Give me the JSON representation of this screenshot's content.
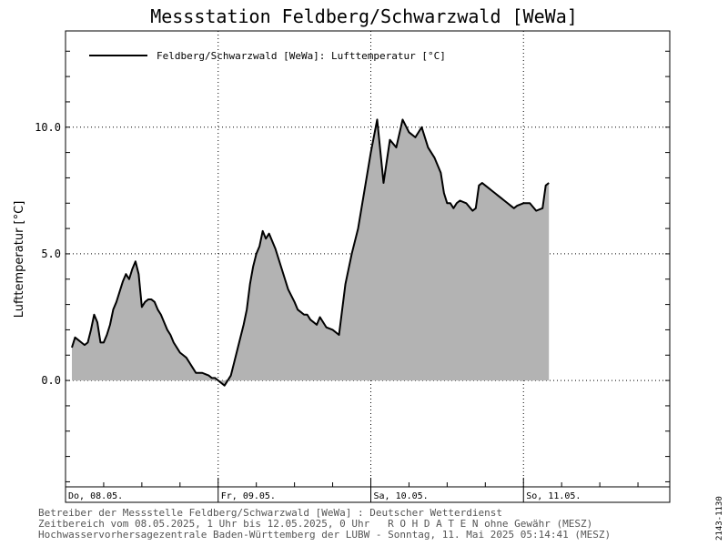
{
  "chart_data": {
    "type": "area",
    "title": "Messstation Feldberg/Schwarzwald [WeWa]",
    "ylabel": "Lufttemperatur [°C]",
    "xlabel": "",
    "ylim": [
      -4.2,
      13.8
    ],
    "xlim": [
      0,
      95
    ],
    "x_unit": "hours since 08.05.2025 00:00 (MESZ)",
    "yticks": [
      0.0,
      5.0,
      10.0
    ],
    "ytick_labels": [
      "0.0",
      "5.0",
      "10.0"
    ],
    "date_labels": [
      {
        "x": 0,
        "label": "Do, 08.05."
      },
      {
        "x": 24,
        "label": "Fr, 09.05."
      },
      {
        "x": 48,
        "label": "Sa, 10.05."
      },
      {
        "x": 72,
        "label": "So, 11.05."
      }
    ],
    "grid": true,
    "fill_color": "#b3b3b3",
    "line_color": "#000000",
    "legend": {
      "position": "top-left",
      "label": "Feldberg/Schwarzwald [WeWa]: Lufttemperatur  [°C]"
    },
    "series": [
      {
        "name": "Feldberg/Schwarzwald [WeWa]: Lufttemperatur  [°C]",
        "x": [
          1.0,
          1.5,
          2.0,
          2.5,
          3.0,
          3.5,
          4.0,
          4.5,
          5.0,
          5.5,
          6.0,
          6.5,
          7.0,
          7.5,
          8.0,
          8.5,
          9.0,
          9.5,
          10.0,
          10.5,
          11.0,
          11.5,
          12.0,
          12.5,
          13.0,
          13.5,
          14.0,
          14.5,
          15.0,
          15.5,
          16.0,
          16.5,
          17.0,
          17.5,
          18.0,
          18.5,
          19.0,
          19.5,
          20.0,
          20.5,
          21.0,
          21.5,
          22.0,
          22.5,
          23.0,
          23.5,
          24.0,
          25.0,
          26.0,
          27.0,
          28.0,
          28.5,
          29.0,
          29.5,
          30.0,
          30.5,
          31.0,
          31.5,
          32.0,
          33.0,
          34.0,
          35.0,
          36.0,
          36.5,
          37.0,
          37.5,
          38.0,
          38.5,
          39.0,
          39.5,
          40.0,
          41.0,
          42.0,
          43.0,
          44.0,
          45.0,
          46.0,
          47.0,
          48.0,
          49.0,
          50.0,
          51.0,
          52.0,
          53.0,
          54.0,
          55.0,
          56.0,
          57.0,
          58.0,
          58.5,
          59.0,
          59.5,
          60.0,
          60.5,
          61.0,
          61.5,
          62.0,
          63.0,
          64.0,
          64.5,
          65.0,
          65.5,
          66.0,
          66.5,
          67.0,
          67.5,
          68.0,
          68.5,
          69.0,
          69.5,
          70.0,
          70.5,
          71.0,
          72.0,
          73.0,
          74.0,
          75.0,
          75.5,
          76.0
        ],
        "values": [
          1.3,
          1.7,
          1.6,
          1.5,
          1.4,
          1.5,
          2.0,
          2.6,
          2.3,
          1.5,
          1.5,
          1.8,
          2.2,
          2.8,
          3.1,
          3.5,
          3.9,
          4.2,
          4.0,
          4.4,
          4.7,
          4.2,
          2.9,
          3.1,
          3.2,
          3.2,
          3.1,
          2.8,
          2.6,
          2.3,
          2.0,
          1.8,
          1.5,
          1.3,
          1.1,
          1.0,
          0.9,
          0.7,
          0.5,
          0.3,
          0.3,
          0.3,
          0.25,
          0.2,
          0.1,
          0.1,
          0.0,
          -0.2,
          0.2,
          1.2,
          2.2,
          2.8,
          3.8,
          4.5,
          5.0,
          5.3,
          5.9,
          5.6,
          5.8,
          5.2,
          4.4,
          3.6,
          3.1,
          2.8,
          2.7,
          2.6,
          2.6,
          2.4,
          2.3,
          2.2,
          2.5,
          2.1,
          2.0,
          1.8,
          3.8,
          5.0,
          6.0,
          7.5,
          9.0,
          10.3,
          7.8,
          9.5,
          9.2,
          10.3,
          9.8,
          9.6,
          10.0,
          9.2,
          8.8,
          8.5,
          8.2,
          7.4,
          7.0,
          7.0,
          6.8,
          7.0,
          7.1,
          7.0,
          6.7,
          6.8,
          7.7,
          7.8,
          7.7,
          7.6,
          7.5,
          7.4,
          7.3,
          7.2,
          7.1,
          7.0,
          6.9,
          6.8,
          6.9,
          7.0,
          7.0,
          6.7,
          6.8,
          7.7,
          7.8
        ]
      }
    ]
  },
  "footer": {
    "line1": "Betreiber der Messstelle Feldberg/Schwarzwald [WeWa] : Deutscher Wetterdienst",
    "line2": "Zeitbereich vom 08.05.2025, 1 Uhr bis 12.05.2025, 0 Uhr   R O H D A T E N ohne Gewähr (MESZ)",
    "line3": "Hochwasservorhersagezentrale Baden-Württemberg der LUBW - Sonntag, 11. Mai 2025 05:14:41 (MESZ)"
  },
  "side_code": "2143-1130"
}
